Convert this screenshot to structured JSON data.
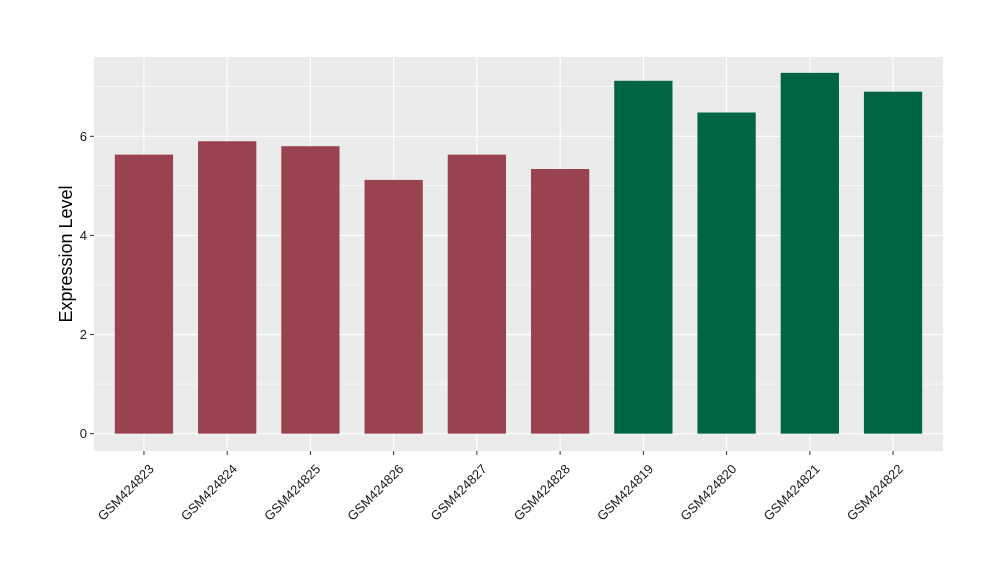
{
  "chart_data": {
    "type": "bar",
    "title": "",
    "xlabel": "",
    "ylabel": "Expression Level",
    "ylim": [
      -0.35,
      7.6
    ],
    "yticks": [
      0,
      2,
      4,
      6
    ],
    "grid": true,
    "legend": "none",
    "categories": [
      "GSM424823",
      "GSM424824",
      "GSM424825",
      "GSM424826",
      "GSM424827",
      "GSM424828",
      "GSM424819",
      "GSM424820",
      "GSM424821",
      "GSM424822"
    ],
    "values": [
      5.63,
      5.9,
      5.8,
      5.12,
      5.63,
      5.34,
      7.12,
      6.48,
      7.28,
      6.9
    ],
    "bar_colors": [
      "#9a4350",
      "#9a4350",
      "#9a4350",
      "#9a4350",
      "#9a4350",
      "#9a4350",
      "#006545",
      "#006545",
      "#006545",
      "#006545"
    ],
    "panel_color": "#ebebeb",
    "grid_color": "#ffffff"
  }
}
